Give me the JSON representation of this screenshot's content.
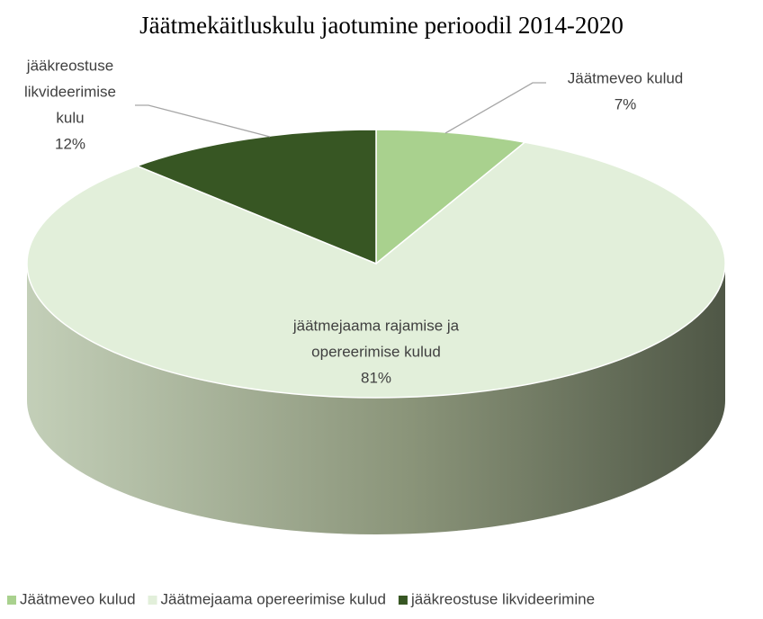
{
  "chart_data": {
    "type": "pie3d",
    "title": "Jäätmekäitluskulu jaotumine perioodil 2014-2020",
    "categories": [
      "Jäätmeveo kulud",
      "Jäätmejaama opereerimise kulud",
      "jääkreostuse likvideerimine"
    ],
    "values": [
      7,
      81,
      12
    ],
    "value_labels": [
      "7%",
      "81%",
      "12%"
    ],
    "label_lines": [
      [
        "Jäätmeveo kulud"
      ],
      [
        "jäätmejaama rajamise ja",
        "opereerimise kulud"
      ],
      [
        "jääkreostuse",
        "likvideerimise",
        "kulu"
      ]
    ],
    "colors": [
      "#a9d18e",
      "#e2efda",
      "#375623"
    ],
    "legend": "bottom"
  }
}
